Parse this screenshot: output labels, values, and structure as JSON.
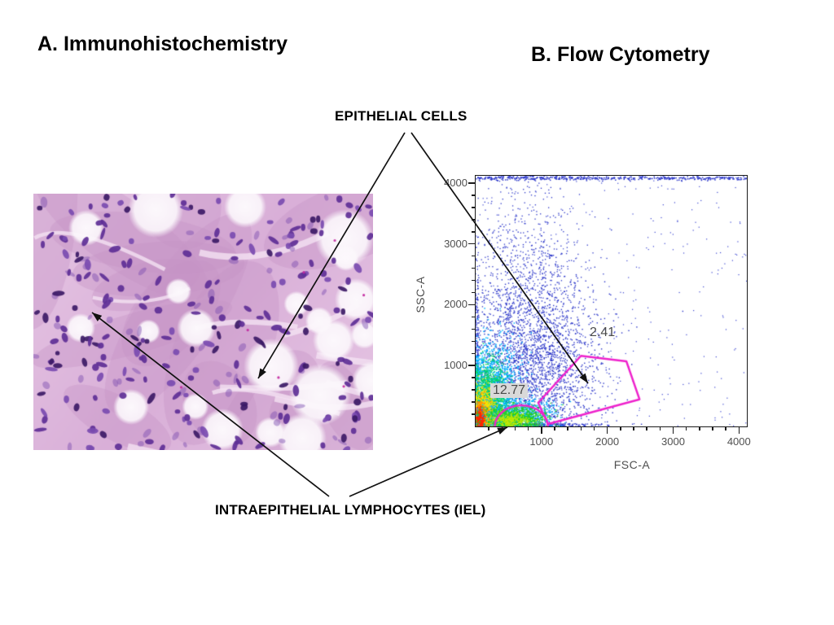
{
  "slide": {
    "background": "#ffffff",
    "title_a": "A. Immunohistochemistry",
    "title_b": "B. Flow Cytometry",
    "label_epithelial": "EPITHELIAL CELLS",
    "label_iel": "INTRAEPITHELIAL LYMPHOCYTES (IEL)"
  },
  "chart_data": {
    "type": "scatter",
    "subtype": "flow-cytometry-density",
    "title": "",
    "xlabel": "FSC-A",
    "ylabel": "SSC-A",
    "xlim": [
      0,
      4120
    ],
    "ylim": [
      0,
      4120
    ],
    "xticks": [
      1000,
      2000,
      3000,
      4000
    ],
    "yticks": [
      1000,
      2000,
      3000,
      4000
    ],
    "minor_tick_interval": 200,
    "grid": false,
    "frame_color": "#1a1a1a",
    "tick_label_color": "#4f4f4f",
    "point_color": "#2a35c8",
    "density_colormap": [
      "#2a35c8",
      "#00b4ff",
      "#00d463",
      "#ffe000",
      "#ff8800",
      "#ff2600"
    ],
    "gates": [
      {
        "name": "epithelial-cells-gate",
        "label": "2.41",
        "shape": "polygon",
        "color": "#ee22cc",
        "vertices": [
          [
            1600,
            1160
          ],
          [
            2290,
            1070
          ],
          [
            2490,
            445
          ],
          [
            1100,
            40
          ],
          [
            950,
            390
          ]
        ]
      },
      {
        "name": "iel-gate",
        "label": "12.77",
        "shape": "dome",
        "color": "#ee22cc",
        "x_range": [
          290,
          1100
        ],
        "peak_ssc": 360
      }
    ],
    "populations": [
      {
        "name": "main-cloud",
        "color": "#2a35c8",
        "n": 2600,
        "cx": 820,
        "cy": 950,
        "sx": 560,
        "sy": 780,
        "size": 1.4
      },
      {
        "name": "upper-plume",
        "color": "#2a35c8",
        "n": 900,
        "cx": 750,
        "cy": 2300,
        "sx": 430,
        "sy": 950,
        "size": 1.3
      },
      {
        "name": "sparse-field",
        "color": "#3a45d0",
        "n": 330,
        "uniform": true,
        "size": 1.2
      },
      {
        "name": "top-pileup",
        "color": "#2a35c8",
        "n": 430,
        "cx": 1400,
        "cy": 4080,
        "sx": 1300,
        "sy": 16,
        "size": 1.5,
        "uniform_x": true
      },
      {
        "name": "cyan-halo",
        "color": "#00b4ff",
        "n": 1500,
        "cx": 260,
        "cy": 520,
        "sx": 200,
        "sy": 430,
        "size": 1.5
      },
      {
        "name": "green-band",
        "color": "#00d463",
        "n": 1300,
        "cx": 190,
        "cy": 380,
        "sx": 140,
        "sy": 330,
        "size": 1.5
      },
      {
        "name": "yellow-core",
        "color": "#ffe000",
        "n": 700,
        "cx": 130,
        "cy": 240,
        "sx": 85,
        "sy": 210,
        "size": 1.5
      },
      {
        "name": "orange-core",
        "color": "#ff8800",
        "n": 450,
        "cx": 90,
        "cy": 150,
        "sx": 55,
        "sy": 140,
        "size": 1.5
      },
      {
        "name": "red-core",
        "color": "#ff2600",
        "n": 300,
        "cx": 60,
        "cy": 100,
        "sx": 38,
        "sy": 95,
        "size": 1.6
      },
      {
        "name": "dome-cyan",
        "color": "#00b4ff",
        "n": 700,
        "cx": 640,
        "cy": 215,
        "sx": 300,
        "sy": 140,
        "size": 1.4
      },
      {
        "name": "dome-green",
        "color": "#22d020",
        "n": 900,
        "cx": 620,
        "cy": 140,
        "sx": 240,
        "sy": 95,
        "size": 1.4
      },
      {
        "name": "dome-yellow",
        "color": "#c8e800",
        "n": 260,
        "cx": 520,
        "cy": 110,
        "sx": 140,
        "sy": 60,
        "size": 1.4
      }
    ]
  },
  "micrograph": {
    "palette": {
      "base": "#d9afd8",
      "base_light": "#e6c6e4",
      "tissue_dark": "#c493c6",
      "brush_border": "#f4e2f3",
      "lumen": "#fcf8fc",
      "nucleus_dark": "#3c1a66",
      "nucleus_mid": "#5e2f96",
      "nucleus_light": "#7a4bb0",
      "speck": "#c2269f"
    }
  },
  "annotations": {
    "arrow_color": "#111111",
    "arrows": [
      {
        "name": "epithelial-to-micrograph-arrow",
        "from": [
          497,
          163
        ],
        "to": [
          317,
          465
        ]
      },
      {
        "name": "epithelial-to-gate-arrow",
        "from": [
          505,
          163
        ],
        "to": [
          722,
          471
        ]
      },
      {
        "name": "iel-to-micrograph-arrow",
        "from": [
          404,
          610
        ],
        "to": [
          113,
          384
        ]
      },
      {
        "name": "iel-to-flowplot-arrow",
        "from": [
          429,
          610
        ],
        "to": [
          623,
          525
        ]
      }
    ]
  }
}
